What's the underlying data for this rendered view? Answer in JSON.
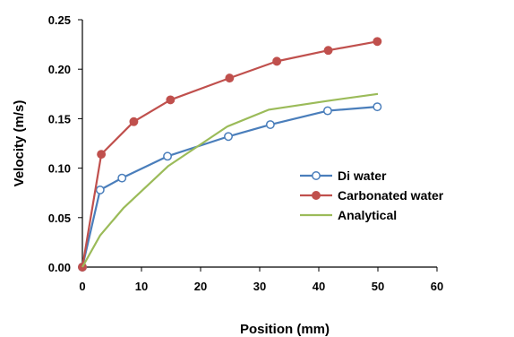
{
  "chart_data": {
    "type": "line",
    "xlabel": "Position (mm)",
    "ylabel": "Velocity (m/s)",
    "xlim": [
      0,
      60
    ],
    "ylim": [
      0,
      0.25
    ],
    "x_ticks": [
      "0",
      "10",
      "20",
      "30",
      "40",
      "50",
      "60"
    ],
    "y_ticks": [
      "0.00",
      "0.05",
      "0.10",
      "0.15",
      "0.20",
      "0.25"
    ],
    "grid": false,
    "legend_position": "center-right",
    "series": [
      {
        "name": "Di water",
        "color": "#4a7ebb",
        "marker": "open-circle",
        "x": [
          0,
          3,
          6.7,
          14.4,
          24.7,
          31.8,
          41.5,
          49.9
        ],
        "y": [
          0.0,
          0.078,
          0.09,
          0.112,
          0.132,
          0.144,
          0.158,
          0.162
        ]
      },
      {
        "name": "Carbonated water",
        "color": "#c0504d",
        "marker": "filled-circle",
        "x": [
          0,
          3.2,
          8.7,
          14.9,
          24.9,
          32.9,
          41.6,
          49.9
        ],
        "y": [
          0.0,
          0.114,
          0.147,
          0.169,
          0.191,
          0.208,
          0.219,
          0.228
        ]
      },
      {
        "name": "Analytical",
        "color": "#9bbb59",
        "marker": "none",
        "x": [
          0,
          3,
          7,
          14.5,
          24.5,
          31.5,
          41.5,
          50
        ],
        "y": [
          0.0,
          0.032,
          0.06,
          0.102,
          0.142,
          0.159,
          0.168,
          0.175
        ]
      }
    ]
  }
}
